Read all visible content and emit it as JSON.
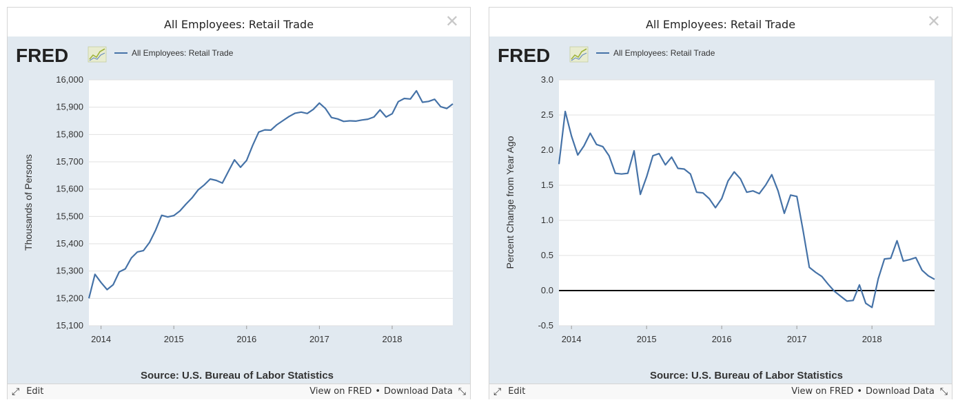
{
  "colors": {
    "series": "#4572a7",
    "plot_bg": "#ffffff",
    "chart_bg": "#e1e9f0",
    "grid": "#e0e0e0",
    "zero_line": "#000000",
    "logo_accent": "#b5c94f"
  },
  "icons": {
    "close": "close-icon",
    "edit": "edit-icon",
    "resize": "resize-icon"
  },
  "panels": [
    {
      "title": "All Employees: Retail Trade",
      "close_glyph": "✕",
      "logo_text": "FRED",
      "legend_label": "All Employees: Retail Trade",
      "source": "Source: U.S. Bureau of Labor Statistics",
      "footer": {
        "edit": "Edit",
        "view": "View on FRED",
        "bullet": "•",
        "download": "Download Data"
      }
    },
    {
      "title": "All Employees: Retail Trade",
      "close_glyph": "✕",
      "logo_text": "FRED",
      "legend_label": "All Employees: Retail Trade",
      "source": "Source: U.S. Bureau of Labor Statistics",
      "footer": {
        "edit": "Edit",
        "view": "View on FRED",
        "bullet": "•",
        "download": "Download Data"
      }
    }
  ],
  "chart_data": [
    {
      "type": "line",
      "title": "All Employees: Retail Trade",
      "ylabel": "Thousands of Persons",
      "xlabel": "",
      "grid": true,
      "legend": "top-left",
      "x_start": "2013-11",
      "x_end": "2018-11",
      "x_ticks": [
        "2014",
        "2015",
        "2016",
        "2017",
        "2018"
      ],
      "ylim": [
        15100,
        16000
      ],
      "y_ticks": [
        "15,100",
        "15,200",
        "15,300",
        "15,400",
        "15,500",
        "15,600",
        "15,700",
        "15,800",
        "15,900",
        "16,000"
      ],
      "y_tick_values": [
        15100,
        15200,
        15300,
        15400,
        15500,
        15600,
        15700,
        15800,
        15900,
        16000
      ],
      "zero_line": false,
      "series": [
        {
          "name": "All Employees: Retail Trade",
          "values": [
            15200,
            15288,
            15258,
            15232,
            15250,
            15297,
            15308,
            15348,
            15370,
            15375,
            15405,
            15450,
            15504,
            15498,
            15503,
            15520,
            15545,
            15568,
            15597,
            15615,
            15637,
            15632,
            15622,
            15665,
            15707,
            15680,
            15705,
            15760,
            15809,
            15817,
            15816,
            15836,
            15851,
            15866,
            15878,
            15882,
            15877,
            15892,
            15915,
            15895,
            15862,
            15857,
            15848,
            15850,
            15849,
            15853,
            15856,
            15864,
            15890,
            15864,
            15876,
            15920,
            15932,
            15930,
            15960,
            15918,
            15921,
            15929,
            15902,
            15895,
            15912
          ]
        }
      ]
    },
    {
      "type": "line",
      "title": "All Employees: Retail Trade",
      "ylabel": "Percent Change from Year Ago",
      "xlabel": "",
      "grid": true,
      "legend": "top-left",
      "x_start": "2013-11",
      "x_end": "2018-11",
      "x_ticks": [
        "2014",
        "2015",
        "2016",
        "2017",
        "2018"
      ],
      "ylim": [
        -0.5,
        3.0
      ],
      "y_ticks": [
        "-0.5",
        "0.0",
        "0.5",
        "1.0",
        "1.5",
        "2.0",
        "2.5",
        "3.0"
      ],
      "y_tick_values": [
        -0.5,
        0.0,
        0.5,
        1.0,
        1.5,
        2.0,
        2.5,
        3.0
      ],
      "zero_line": true,
      "series": [
        {
          "name": "All Employees: Retail Trade",
          "values": [
            1.8,
            2.55,
            2.2,
            1.93,
            2.06,
            2.24,
            2.08,
            2.05,
            1.92,
            1.67,
            1.66,
            1.67,
            1.99,
            1.37,
            1.62,
            1.92,
            1.95,
            1.79,
            1.9,
            1.74,
            1.73,
            1.66,
            1.4,
            1.39,
            1.31,
            1.18,
            1.31,
            1.56,
            1.69,
            1.59,
            1.4,
            1.42,
            1.38,
            1.5,
            1.65,
            1.42,
            1.1,
            1.36,
            1.34,
            0.85,
            0.33,
            0.26,
            0.2,
            0.09,
            -0.01,
            -0.08,
            -0.15,
            -0.14,
            0.08,
            -0.18,
            -0.24,
            0.17,
            0.45,
            0.46,
            0.71,
            0.42,
            0.44,
            0.47,
            0.29,
            0.21,
            0.16
          ]
        }
      ]
    }
  ]
}
